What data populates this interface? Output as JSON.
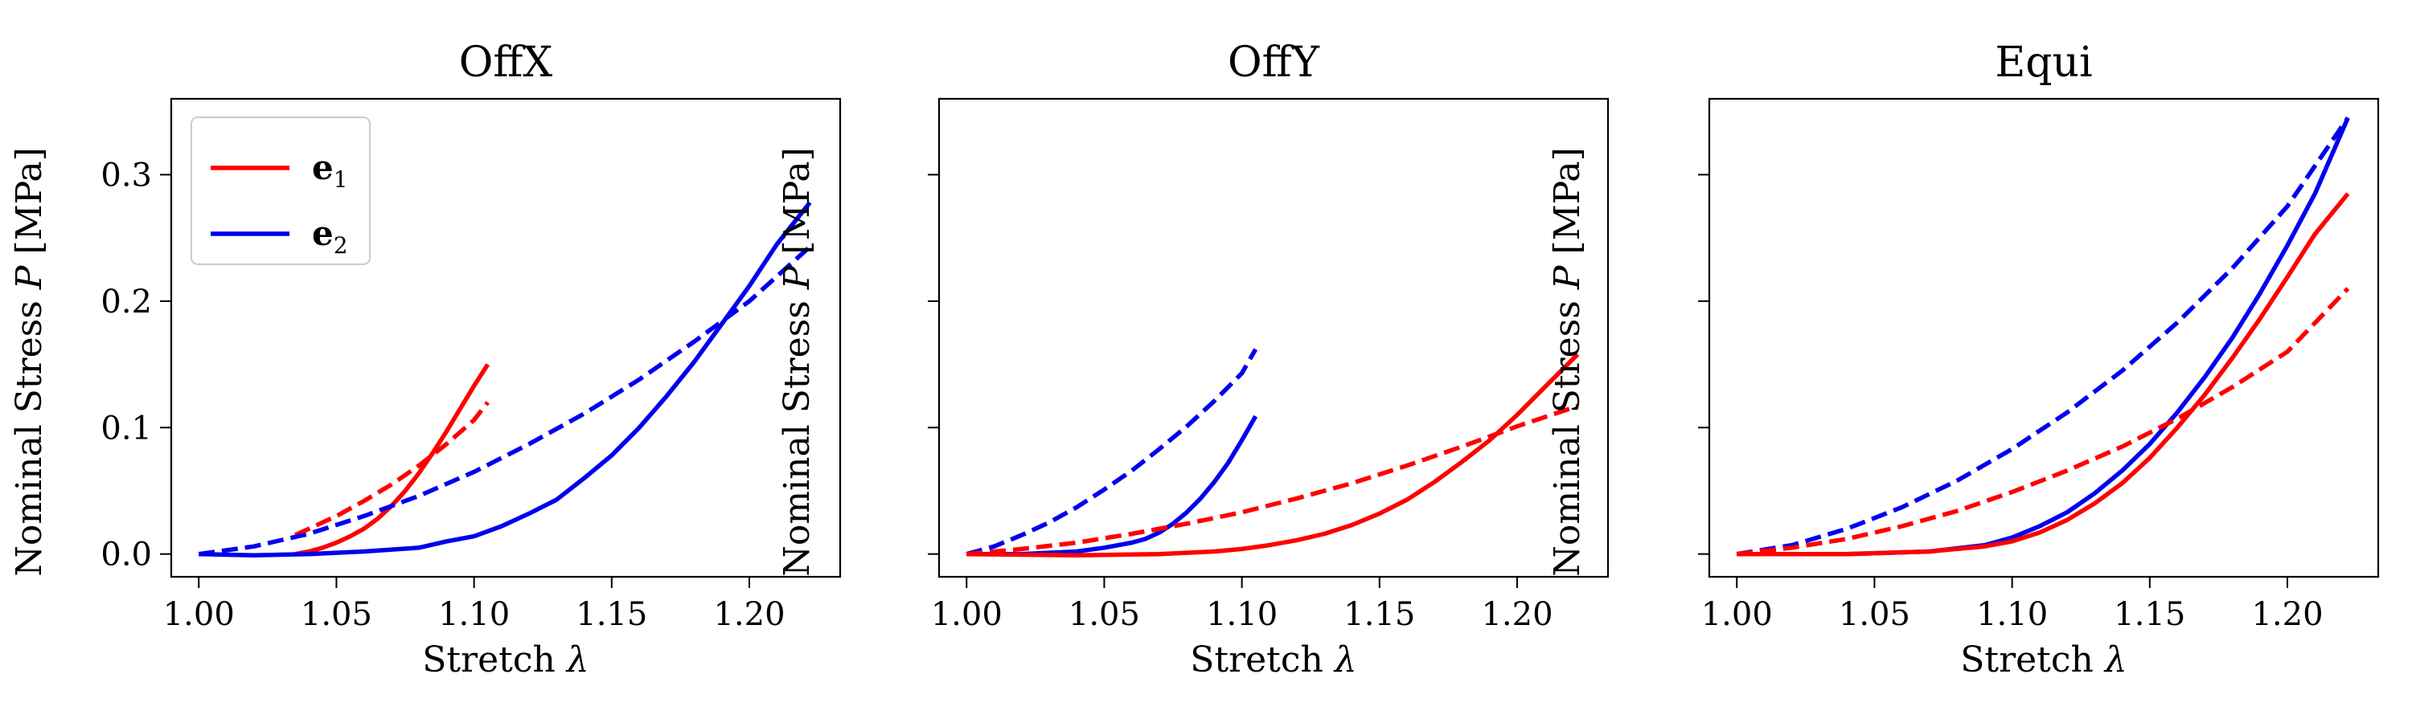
{
  "chart_data": [
    {
      "type": "line",
      "title": "OffX",
      "xlabel": "Stretch λ",
      "ylabel": "Nominal Stress P [MPa]",
      "xlim": [
        0.99,
        1.233
      ],
      "ylim": [
        -0.018,
        0.36
      ],
      "xticks": [
        1.0,
        1.05,
        1.1,
        1.15,
        1.2
      ],
      "xtick_labels": [
        "1.00",
        "1.05",
        "1.10",
        "1.15",
        "1.20"
      ],
      "yticks": [
        0.0,
        0.1,
        0.2,
        0.3
      ],
      "ytick_labels": [
        "0.0",
        "0.1",
        "0.2",
        "0.3"
      ],
      "legend": {
        "placement": "top-left",
        "entries": [
          {
            "label": "e",
            "sub": "1",
            "color": "#ff0000"
          },
          {
            "label": "e",
            "sub": "2",
            "color": "#0000ee"
          }
        ]
      },
      "series": [
        {
          "color": "#ff0000",
          "style": "solid",
          "x": [
            1.035,
            1.04,
            1.045,
            1.05,
            1.055,
            1.06,
            1.065,
            1.07,
            1.075,
            1.08,
            1.085,
            1.09,
            1.095,
            1.1,
            1.105
          ],
          "y": [
            0.0,
            0.002,
            0.005,
            0.009,
            0.014,
            0.02,
            0.028,
            0.038,
            0.05,
            0.064,
            0.08,
            0.097,
            0.115,
            0.133,
            0.15
          ]
        },
        {
          "color": "#ff0000",
          "style": "dashed",
          "x": [
            1.035,
            1.04,
            1.05,
            1.06,
            1.07,
            1.08,
            1.09,
            1.1,
            1.105
          ],
          "y": [
            0.015,
            0.02,
            0.03,
            0.042,
            0.055,
            0.07,
            0.087,
            0.106,
            0.12
          ]
        },
        {
          "color": "#0000ee",
          "style": "solid",
          "x": [
            1.0,
            1.02,
            1.04,
            1.06,
            1.08,
            1.09,
            1.1,
            1.11,
            1.12,
            1.13,
            1.14,
            1.15,
            1.16,
            1.17,
            1.18,
            1.19,
            1.2,
            1.21,
            1.222
          ],
          "y": [
            0.0,
            -0.001,
            0.0,
            0.002,
            0.005,
            0.01,
            0.014,
            0.022,
            0.032,
            0.043,
            0.06,
            0.078,
            0.1,
            0.125,
            0.152,
            0.182,
            0.212,
            0.245,
            0.278
          ]
        },
        {
          "color": "#0000ee",
          "style": "dashed",
          "x": [
            1.0,
            1.02,
            1.04,
            1.06,
            1.08,
            1.1,
            1.12,
            1.14,
            1.16,
            1.18,
            1.2,
            1.222
          ],
          "y": [
            0.0,
            0.006,
            0.016,
            0.03,
            0.046,
            0.065,
            0.087,
            0.111,
            0.138,
            0.168,
            0.2,
            0.243
          ]
        }
      ]
    },
    {
      "type": "line",
      "title": "OffY",
      "xlabel": "Stretch λ",
      "ylabel": "Nominal Stress P [MPa]",
      "xlim": [
        0.99,
        1.233
      ],
      "ylim": [
        -0.018,
        0.36
      ],
      "xticks": [
        1.0,
        1.05,
        1.1,
        1.15,
        1.2
      ],
      "xtick_labels": [
        "1.00",
        "1.05",
        "1.10",
        "1.15",
        "1.20"
      ],
      "yticks": [
        0.0,
        0.1,
        0.2,
        0.3
      ],
      "ytick_labels": [],
      "series": [
        {
          "color": "#0000ee",
          "style": "solid",
          "x": [
            1.0,
            1.02,
            1.04,
            1.05,
            1.06,
            1.065,
            1.07,
            1.075,
            1.08,
            1.085,
            1.09,
            1.095,
            1.1,
            1.105
          ],
          "y": [
            0.0,
            0.0,
            0.002,
            0.005,
            0.009,
            0.012,
            0.017,
            0.024,
            0.033,
            0.044,
            0.057,
            0.072,
            0.09,
            0.109
          ]
        },
        {
          "color": "#0000ee",
          "style": "dashed",
          "x": [
            1.0,
            1.01,
            1.02,
            1.03,
            1.04,
            1.05,
            1.06,
            1.07,
            1.08,
            1.09,
            1.1,
            1.105
          ],
          "y": [
            0.0,
            0.006,
            0.015,
            0.025,
            0.037,
            0.051,
            0.066,
            0.083,
            0.101,
            0.121,
            0.143,
            0.162
          ]
        },
        {
          "color": "#ff0000",
          "style": "solid",
          "x": [
            1.0,
            1.04,
            1.07,
            1.09,
            1.1,
            1.11,
            1.12,
            1.13,
            1.14,
            1.15,
            1.16,
            1.17,
            1.18,
            1.19,
            1.2,
            1.21,
            1.222
          ],
          "y": [
            0.0,
            -0.001,
            0.0,
            0.002,
            0.004,
            0.007,
            0.011,
            0.016,
            0.023,
            0.032,
            0.043,
            0.057,
            0.073,
            0.09,
            0.11,
            0.132,
            0.158
          ]
        },
        {
          "color": "#ff0000",
          "style": "dashed",
          "x": [
            1.0,
            1.02,
            1.04,
            1.06,
            1.08,
            1.1,
            1.12,
            1.14,
            1.16,
            1.18,
            1.2,
            1.222
          ],
          "y": [
            0.0,
            0.004,
            0.009,
            0.016,
            0.024,
            0.033,
            0.044,
            0.056,
            0.07,
            0.085,
            0.101,
            0.117
          ]
        }
      ]
    },
    {
      "type": "line",
      "title": "Equi",
      "xlabel": "Stretch λ",
      "ylabel": "Nominal Stress P [MPa]",
      "xlim": [
        0.99,
        1.233
      ],
      "ylim": [
        -0.018,
        0.36
      ],
      "xticks": [
        1.0,
        1.05,
        1.1,
        1.15,
        1.2
      ],
      "xtick_labels": [
        "1.00",
        "1.05",
        "1.10",
        "1.15",
        "1.20"
      ],
      "yticks": [
        0.0,
        0.1,
        0.2,
        0.3
      ],
      "ytick_labels": [],
      "series": [
        {
          "color": "#0000ee",
          "style": "solid",
          "x": [
            1.0,
            1.04,
            1.07,
            1.09,
            1.1,
            1.11,
            1.12,
            1.13,
            1.14,
            1.15,
            1.16,
            1.17,
            1.18,
            1.19,
            1.2,
            1.21,
            1.222
          ],
          "y": [
            0.0,
            0.0,
            0.002,
            0.007,
            0.013,
            0.022,
            0.033,
            0.048,
            0.066,
            0.087,
            0.112,
            0.14,
            0.171,
            0.206,
            0.244,
            0.285,
            0.345
          ]
        },
        {
          "color": "#0000ee",
          "style": "dashed",
          "x": [
            1.0,
            1.02,
            1.04,
            1.06,
            1.08,
            1.1,
            1.12,
            1.14,
            1.16,
            1.18,
            1.2,
            1.222
          ],
          "y": [
            0.0,
            0.007,
            0.02,
            0.037,
            0.058,
            0.083,
            0.112,
            0.145,
            0.183,
            0.226,
            0.275,
            0.345
          ]
        },
        {
          "color": "#ff0000",
          "style": "solid",
          "x": [
            1.0,
            1.04,
            1.07,
            1.09,
            1.1,
            1.11,
            1.12,
            1.13,
            1.14,
            1.15,
            1.16,
            1.17,
            1.18,
            1.19,
            1.2,
            1.21,
            1.222
          ],
          "y": [
            0.0,
            0.0,
            0.002,
            0.006,
            0.01,
            0.017,
            0.027,
            0.04,
            0.056,
            0.076,
            0.1,
            0.126,
            0.155,
            0.186,
            0.219,
            0.253,
            0.285
          ]
        },
        {
          "color": "#ff0000",
          "style": "dashed",
          "x": [
            1.0,
            1.02,
            1.04,
            1.06,
            1.08,
            1.1,
            1.12,
            1.14,
            1.16,
            1.18,
            1.2,
            1.222
          ],
          "y": [
            0.0,
            0.005,
            0.012,
            0.022,
            0.034,
            0.049,
            0.066,
            0.085,
            0.107,
            0.132,
            0.16,
            0.21
          ]
        }
      ]
    }
  ]
}
